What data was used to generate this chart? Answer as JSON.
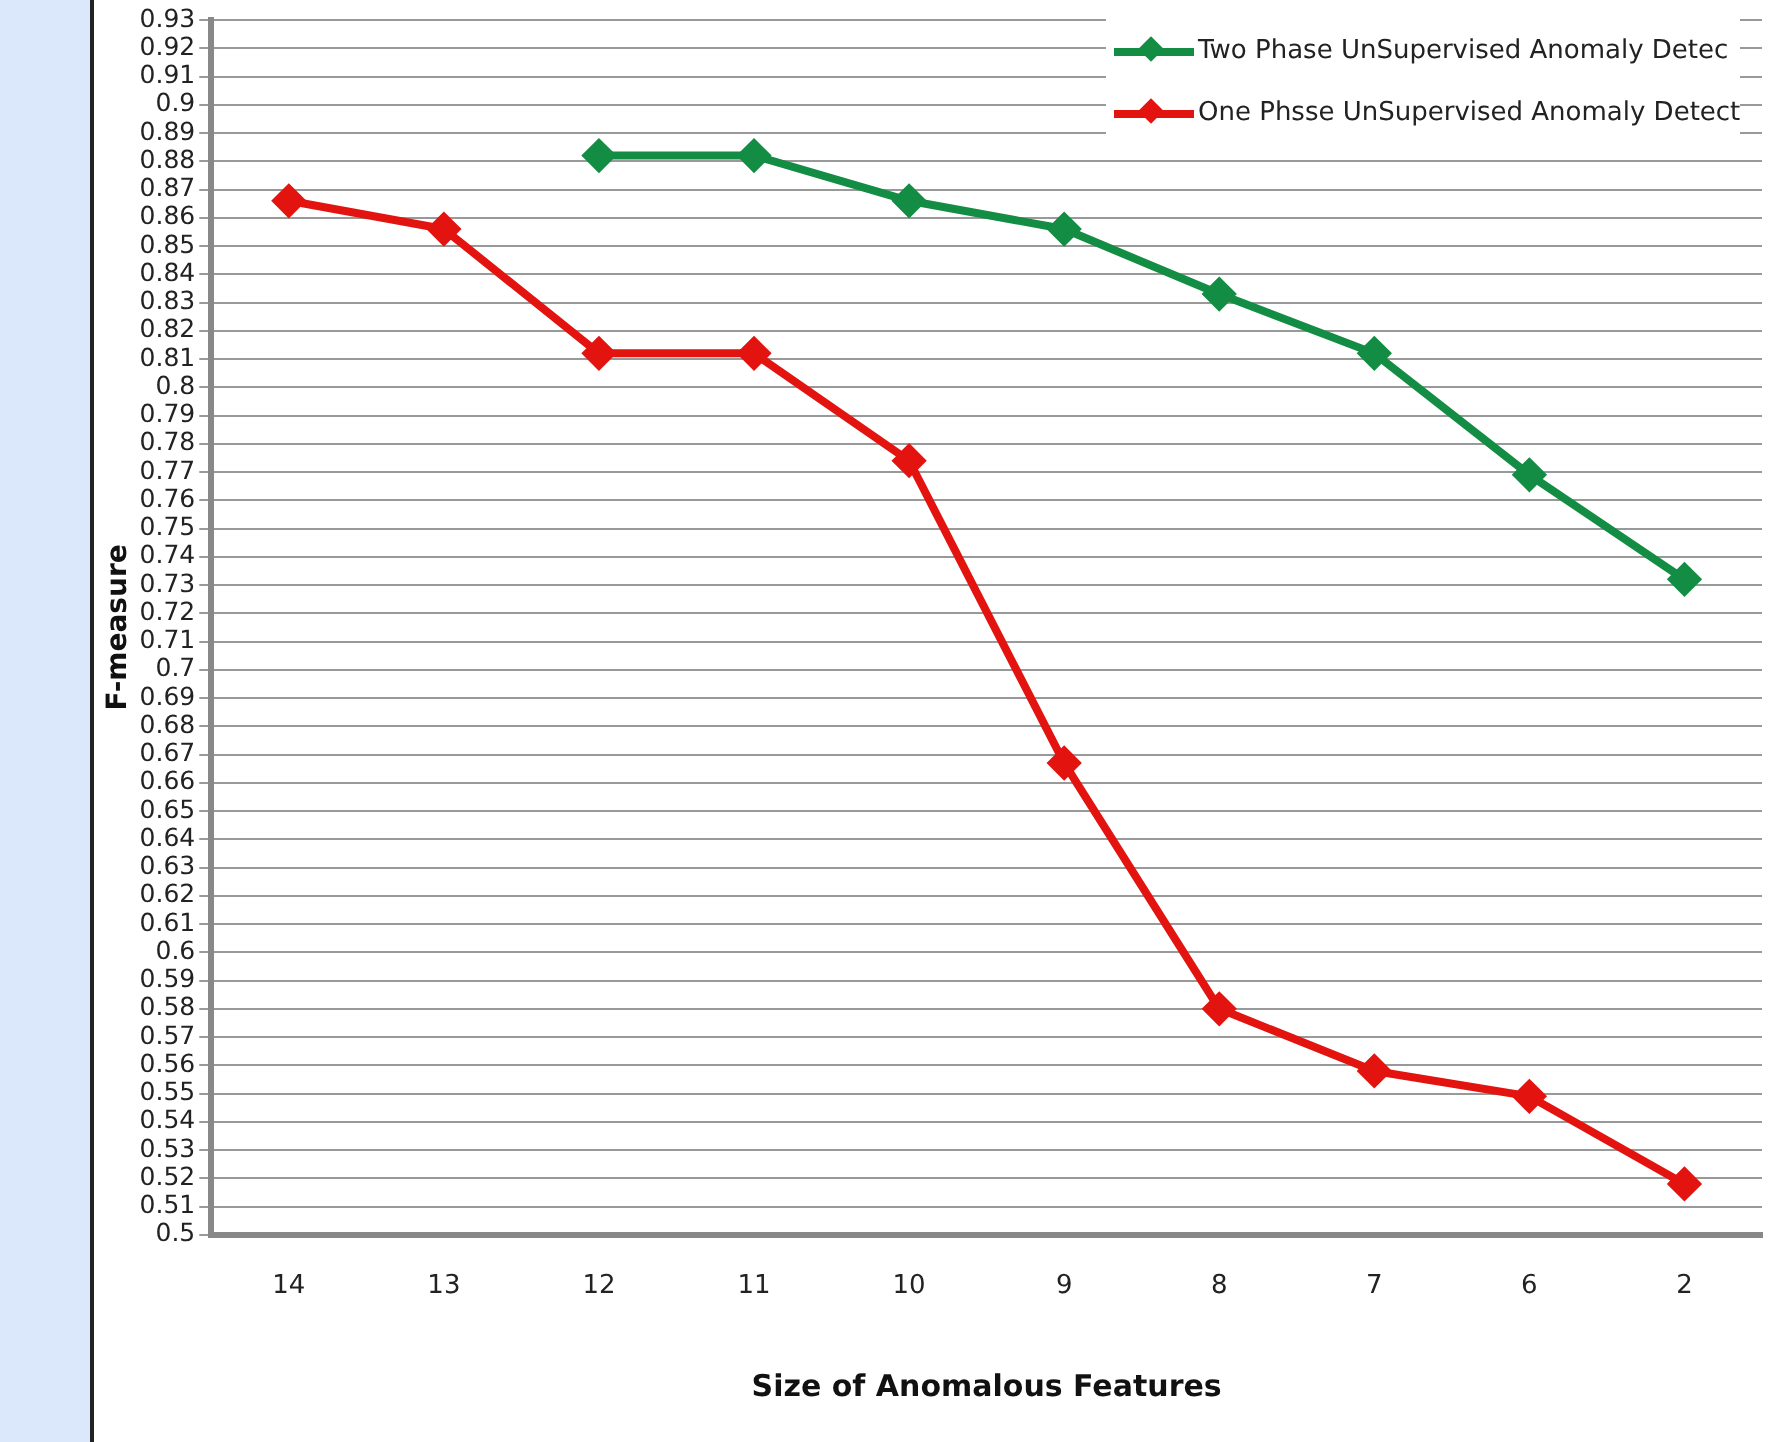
{
  "chart_data": {
    "type": "line",
    "xlabel": "Size of Anomalous Features",
    "ylabel": "F-measure",
    "categories": [
      "14",
      "13",
      "12",
      "11",
      "10",
      "9",
      "8",
      "7",
      "6",
      "2"
    ],
    "series": [
      {
        "name": "Two Phase UnSupervised Anomaly Detec",
        "color": "#138c44",
        "values": [
          null,
          null,
          0.882,
          0.882,
          0.866,
          0.856,
          0.833,
          0.812,
          0.769,
          0.732
        ]
      },
      {
        "name": "One Phsse UnSupervised Anomaly Detect",
        "color": "#e3140f",
        "values": [
          0.866,
          0.856,
          0.812,
          0.812,
          0.774,
          0.667,
          0.58,
          0.558,
          0.549,
          0.518
        ]
      }
    ],
    "ylim": [
      0.5,
      0.93
    ],
    "yticks": [
      0.5,
      0.51,
      0.52,
      0.53,
      0.54,
      0.55,
      0.56,
      0.57,
      0.58,
      0.59,
      0.6,
      0.61,
      0.62,
      0.63,
      0.64,
      0.65,
      0.66,
      0.67,
      0.68,
      0.69,
      0.7,
      0.71,
      0.72,
      0.73,
      0.74,
      0.75,
      0.76,
      0.77,
      0.78,
      0.79,
      0.8,
      0.81,
      0.82,
      0.83,
      0.84,
      0.85,
      0.86,
      0.87,
      0.88,
      0.89,
      0.9,
      0.91,
      0.92,
      0.93
    ],
    "grid": "y",
    "legend": "top right",
    "marker": "diamond",
    "line_style": "solid"
  }
}
